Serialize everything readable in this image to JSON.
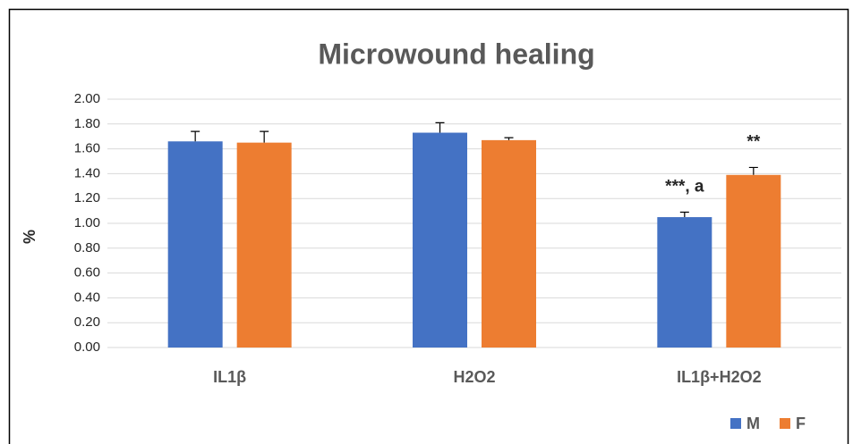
{
  "chart_data": {
    "type": "bar",
    "title": "Microwound healing",
    "ylabel": "%",
    "categories": [
      "IL1β",
      "H2O2",
      "IL1β+H2O2"
    ],
    "series": [
      {
        "name": "M",
        "color": "#4472c4",
        "values": [
          1.66,
          1.73,
          1.05
        ],
        "errors": [
          0.08,
          0.08,
          0.04
        ],
        "annotations": [
          null,
          null,
          "***, a"
        ]
      },
      {
        "name": "F",
        "color": "#ed7d31",
        "values": [
          1.65,
          1.67,
          1.39
        ],
        "errors": [
          0.09,
          0.02,
          0.06
        ],
        "annotations": [
          null,
          null,
          "**"
        ]
      }
    ],
    "ylim": [
      0,
      2
    ],
    "yticks": [
      {
        "value": 0,
        "label": "0.00"
      },
      {
        "value": 0.2,
        "label": "0.20"
      },
      {
        "value": 0.4,
        "label": "0.40"
      },
      {
        "value": 0.6,
        "label": "0.60"
      },
      {
        "value": 0.8,
        "label": "0.80"
      },
      {
        "value": 1,
        "label": "1.00"
      },
      {
        "value": 1.2,
        "label": "1.20"
      },
      {
        "value": 1.4,
        "label": "1.40"
      },
      {
        "value": 1.6,
        "label": "1.60"
      },
      {
        "value": 1.8,
        "label": "1.80"
      },
      {
        "value": 2,
        "label": "2.00"
      }
    ],
    "grid": true,
    "legend": "bottom-right"
  }
}
